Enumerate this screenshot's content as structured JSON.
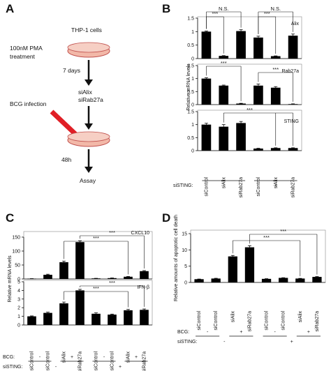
{
  "figure": {
    "panel_labels": [
      "A",
      "B",
      "C",
      "D"
    ],
    "schema": {
      "cells": "THP-1 cells",
      "pma_line1": "100nM PMA",
      "pma_line2": "treatment",
      "days": "7 days",
      "sirna1": "siAlix",
      "sirna2": "siRab27a",
      "infection": "BCG infection",
      "hours": "48h",
      "assay": "Assay"
    },
    "colors": {
      "bar": "#000000",
      "arrow_red": "#e01f26",
      "dish_fill": "#f2b8a8",
      "dish_stroke": "#c0504d"
    }
  },
  "chart_data": [
    {
      "panel": "B",
      "type": "bar",
      "categories": [
        "siControl",
        "siAlix",
        "siRab27a",
        "siControl",
        "siAlix",
        "siRab27a"
      ],
      "group_labels": {
        "row_label": "siSTING:",
        "values": [
          "-",
          "+"
        ]
      },
      "ylabel": "Relative mRNA levels",
      "subplots": [
        {
          "label": "Alix",
          "ylim": [
            0,
            1.5
          ],
          "yticks": [
            "0",
            "0.5",
            "1",
            "1.5"
          ],
          "values": [
            1.0,
            0.1,
            1.02,
            0.78,
            0.09,
            0.85
          ],
          "errors": [
            0.02,
            0.01,
            0.05,
            0.05,
            0.01,
            0.06
          ],
          "sig": [
            {
              "from": 0,
              "to": 2,
              "label": "N.S."
            },
            {
              "from": 0,
              "to": 1,
              "label": "***"
            },
            {
              "from": 3,
              "to": 5,
              "label": "N.S."
            },
            {
              "from": 3,
              "to": 4,
              "label": "***"
            }
          ]
        },
        {
          "label": "Rab27a",
          "ylim": [
            0,
            1.5
          ],
          "yticks": [
            "0",
            "0.5",
            "1",
            "1.5"
          ],
          "values": [
            1.0,
            0.73,
            0.04,
            0.73,
            0.65,
            0.02
          ],
          "errors": [
            0.03,
            0.02,
            0.01,
            0.06,
            0.04,
            0.01
          ],
          "sig": [
            {
              "from": 0,
              "to": 2,
              "label": "***"
            },
            {
              "from": 3,
              "to": 5,
              "label": "***"
            }
          ]
        },
        {
          "label": "STING",
          "ylim": [
            0,
            1.5
          ],
          "yticks": [
            "0",
            "0.5",
            "1",
            "1.5"
          ],
          "values": [
            1.0,
            0.92,
            1.06,
            0.08,
            0.1,
            0.1
          ],
          "errors": [
            0.05,
            0.08,
            0.06,
            0.01,
            0.01,
            0.01
          ],
          "sig": [
            {
              "from": 1,
              "to": 4,
              "label": "***",
              "span_to": 5
            }
          ]
        }
      ]
    },
    {
      "panel": "C",
      "type": "bar",
      "categories": [
        "siControl",
        "siControl",
        "siAlix",
        "siRab27a",
        "siControl",
        "siControl",
        "siAlix",
        "siRab27a"
      ],
      "group_labels": {
        "bcg_label": "BCG:",
        "bcg_values": [
          "-",
          "+",
          "-",
          "+"
        ],
        "sting_label": "siSTING:",
        "sting_values": [
          "-",
          "+"
        ]
      },
      "ylabel": "Relative mRNA levels",
      "subplots": [
        {
          "label": "CXCL10",
          "ylim": [
            0,
            150
          ],
          "yticks": [
            "0",
            "50",
            "100",
            "150"
          ],
          "values": [
            1,
            15,
            60,
            132,
            2,
            3,
            8,
            28
          ],
          "errors": [
            0.2,
            2,
            4,
            5,
            0.3,
            0.5,
            1,
            2
          ],
          "sig": [
            {
              "from": 2,
              "to": 6,
              "label": "***"
            },
            {
              "from": 3,
              "to": 7,
              "label": "***"
            }
          ]
        },
        {
          "label": "IFN-β",
          "ylim": [
            0,
            5
          ],
          "yticks": [
            "0",
            "1",
            "2",
            "3",
            "4",
            "5"
          ],
          "values": [
            1.0,
            1.4,
            2.5,
            4.0,
            1.3,
            1.2,
            1.7,
            1.75
          ],
          "errors": [
            0.05,
            0.08,
            0.15,
            0.12,
            0.1,
            0.06,
            0.1,
            0.1
          ],
          "sig": [
            {
              "from": 2,
              "to": 6,
              "label": "***"
            },
            {
              "from": 3,
              "to": 7,
              "label": "***"
            }
          ]
        }
      ]
    },
    {
      "panel": "D",
      "type": "bar",
      "categories": [
        "siControl",
        "siControl",
        "siAlix",
        "siRab27a",
        "siControl",
        "siControl",
        "siAlix",
        "siRab27a"
      ],
      "group_labels": {
        "bcg_label": "BCG:",
        "bcg_values": [
          "-",
          "+",
          "-",
          "+"
        ],
        "sting_label": "siSTING:",
        "sting_values": [
          "-",
          "+"
        ]
      },
      "ylabel": "Relative amounts of apoptotic cell death",
      "ylim": [
        0,
        15
      ],
      "yticks": [
        "0",
        "5",
        "10",
        "15"
      ],
      "values": [
        1.0,
        1.2,
        8.0,
        10.8,
        1.1,
        1.4,
        1.2,
        1.7
      ],
      "errors": [
        0.05,
        0.08,
        0.3,
        0.5,
        0.05,
        0.05,
        0.05,
        0.1
      ],
      "sig": [
        {
          "from": 2,
          "to": 6,
          "label": "***"
        },
        {
          "from": 3,
          "to": 7,
          "label": "***"
        }
      ]
    }
  ]
}
